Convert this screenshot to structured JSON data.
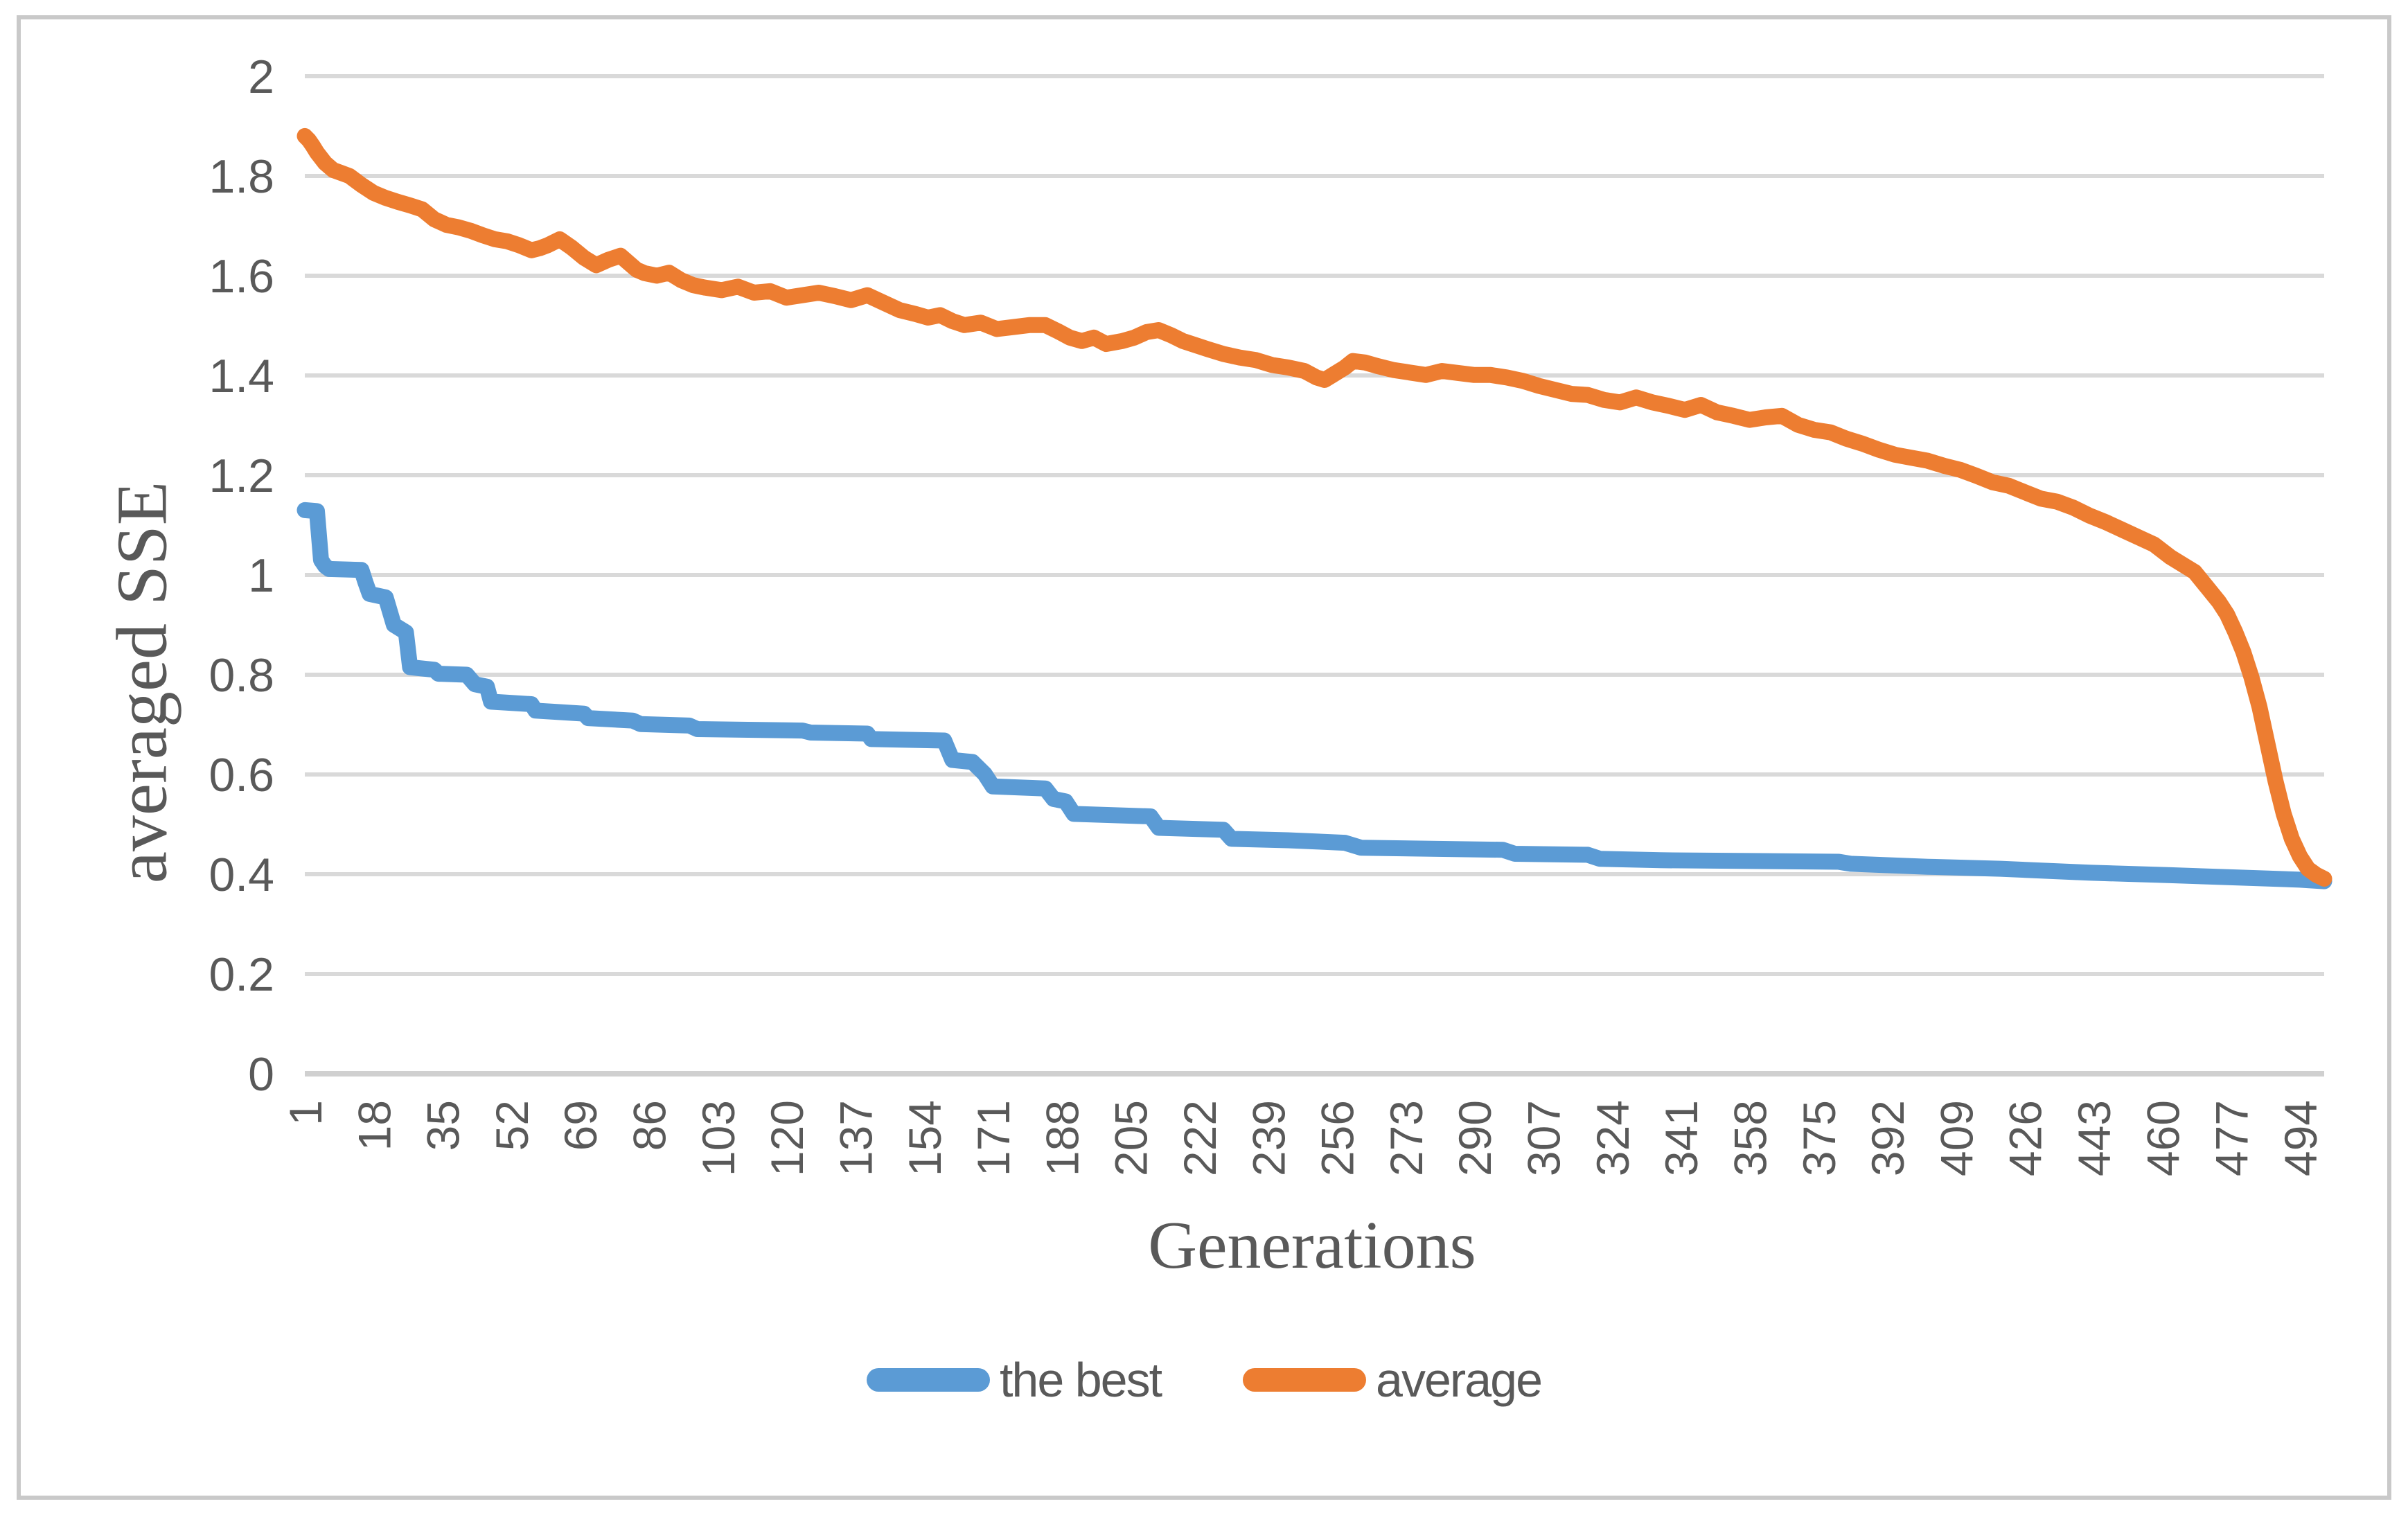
{
  "figure": {
    "background_color": "#FFFFFF",
    "border_color": "#C9C9C9",
    "text_color": "#595959",
    "gridline_color": "#D9D9D9",
    "axisline_color": "#D0D0D0"
  },
  "chart_data": {
    "type": "line",
    "title": "",
    "xlabel": "Generations",
    "ylabel": "averaged SSE",
    "xlim": [
      1,
      500
    ],
    "ylim": [
      0,
      2
    ],
    "grid": "horizontal",
    "legend_position": "bottom",
    "x_tick_step": 17,
    "x_ticks": [
      "1",
      "18",
      "35",
      "52",
      "69",
      "86",
      "103",
      "120",
      "137",
      "154",
      "171",
      "188",
      "205",
      "222",
      "239",
      "256",
      "273",
      "290",
      "307",
      "324",
      "341",
      "358",
      "375",
      "392",
      "409",
      "426",
      "443",
      "460",
      "477",
      "494"
    ],
    "y_ticks": [
      "0",
      "0.2",
      "0.4",
      "0.6",
      "0.8",
      "1",
      "1.2",
      "1.4",
      "1.6",
      "1.8",
      "2"
    ],
    "series": [
      {
        "name": "the best",
        "color": "#5B9BD5",
        "points": [
          [
            1,
            1.13
          ],
          [
            4,
            1.128
          ],
          [
            5,
            1.03
          ],
          [
            6,
            1.018
          ],
          [
            7,
            1.012
          ],
          [
            15,
            1.01
          ],
          [
            16,
            0.985
          ],
          [
            17,
            0.962
          ],
          [
            21,
            0.955
          ],
          [
            23,
            0.9
          ],
          [
            26,
            0.885
          ],
          [
            27,
            0.815
          ],
          [
            33,
            0.81
          ],
          [
            34,
            0.802
          ],
          [
            41,
            0.8
          ],
          [
            43,
            0.781
          ],
          [
            46,
            0.776
          ],
          [
            47,
            0.746
          ],
          [
            57,
            0.741
          ],
          [
            58,
            0.728
          ],
          [
            70,
            0.722
          ],
          [
            71,
            0.713
          ],
          [
            82,
            0.708
          ],
          [
            84,
            0.701
          ],
          [
            96,
            0.698
          ],
          [
            98,
            0.691
          ],
          [
            124,
            0.688
          ],
          [
            126,
            0.684
          ],
          [
            140,
            0.682
          ],
          [
            141,
            0.671
          ],
          [
            159,
            0.668
          ],
          [
            161,
            0.629
          ],
          [
            166,
            0.625
          ],
          [
            169,
            0.601
          ],
          [
            171,
            0.576
          ],
          [
            184,
            0.572
          ],
          [
            186,
            0.551
          ],
          [
            189,
            0.546
          ],
          [
            191,
            0.521
          ],
          [
            210,
            0.516
          ],
          [
            212,
            0.493
          ],
          [
            228,
            0.489
          ],
          [
            230,
            0.471
          ],
          [
            244,
            0.468
          ],
          [
            258,
            0.463
          ],
          [
            262,
            0.453
          ],
          [
            297,
            0.449
          ],
          [
            300,
            0.441
          ],
          [
            318,
            0.439
          ],
          [
            321,
            0.431
          ],
          [
            336,
            0.428
          ],
          [
            380,
            0.425
          ],
          [
            383,
            0.421
          ],
          [
            402,
            0.415
          ],
          [
            420,
            0.411
          ],
          [
            442,
            0.403
          ],
          [
            462,
            0.398
          ],
          [
            480,
            0.393
          ],
          [
            494,
            0.389
          ],
          [
            500,
            0.386
          ]
        ]
      },
      {
        "name": "average",
        "color": "#ED7D31",
        "points": [
          [
            1,
            1.88
          ],
          [
            2,
            1.872
          ],
          [
            3,
            1.86
          ],
          [
            4,
            1.847
          ],
          [
            6,
            1.826
          ],
          [
            8,
            1.812
          ],
          [
            10,
            1.806
          ],
          [
            12,
            1.8
          ],
          [
            15,
            1.782
          ],
          [
            18,
            1.766
          ],
          [
            21,
            1.756
          ],
          [
            24,
            1.748
          ],
          [
            27,
            1.741
          ],
          [
            30,
            1.733
          ],
          [
            33,
            1.713
          ],
          [
            36,
            1.702
          ],
          [
            39,
            1.697
          ],
          [
            42,
            1.69
          ],
          [
            45,
            1.681
          ],
          [
            48,
            1.673
          ],
          [
            51,
            1.669
          ],
          [
            54,
            1.661
          ],
          [
            57,
            1.651
          ],
          [
            59,
            1.655
          ],
          [
            61,
            1.661
          ],
          [
            64,
            1.673
          ],
          [
            67,
            1.656
          ],
          [
            70,
            1.636
          ],
          [
            73,
            1.621
          ],
          [
            76,
            1.632
          ],
          [
            79,
            1.64
          ],
          [
            81,
            1.626
          ],
          [
            83,
            1.612
          ],
          [
            85,
            1.605
          ],
          [
            88,
            1.6
          ],
          [
            91,
            1.606
          ],
          [
            94,
            1.591
          ],
          [
            97,
            1.581
          ],
          [
            100,
            1.576
          ],
          [
            104,
            1.571
          ],
          [
            108,
            1.578
          ],
          [
            112,
            1.566
          ],
          [
            116,
            1.569
          ],
          [
            120,
            1.556
          ],
          [
            124,
            1.561
          ],
          [
            128,
            1.566
          ],
          [
            132,
            1.559
          ],
          [
            136,
            1.551
          ],
          [
            140,
            1.561
          ],
          [
            144,
            1.546
          ],
          [
            148,
            1.531
          ],
          [
            152,
            1.523
          ],
          [
            155,
            1.516
          ],
          [
            158,
            1.521
          ],
          [
            161,
            1.509
          ],
          [
            164,
            1.501
          ],
          [
            168,
            1.506
          ],
          [
            172,
            1.493
          ],
          [
            176,
            1.497
          ],
          [
            180,
            1.501
          ],
          [
            184,
            1.501
          ],
          [
            187,
            1.489
          ],
          [
            190,
            1.476
          ],
          [
            193,
            1.469
          ],
          [
            196,
            1.476
          ],
          [
            199,
            1.463
          ],
          [
            203,
            1.469
          ],
          [
            206,
            1.476
          ],
          [
            209,
            1.487
          ],
          [
            212,
            1.491
          ],
          [
            215,
            1.481
          ],
          [
            218,
            1.469
          ],
          [
            221,
            1.461
          ],
          [
            224,
            1.453
          ],
          [
            228,
            1.443
          ],
          [
            232,
            1.436
          ],
          [
            236,
            1.431
          ],
          [
            240,
            1.421
          ],
          [
            244,
            1.416
          ],
          [
            248,
            1.409
          ],
          [
            251,
            1.396
          ],
          [
            253,
            1.391
          ],
          [
            255,
            1.401
          ],
          [
            258,
            1.416
          ],
          [
            260,
            1.429
          ],
          [
            263,
            1.426
          ],
          [
            266,
            1.419
          ],
          [
            270,
            1.411
          ],
          [
            274,
            1.406
          ],
          [
            278,
            1.401
          ],
          [
            282,
            1.409
          ],
          [
            286,
            1.405
          ],
          [
            290,
            1.401
          ],
          [
            294,
            1.401
          ],
          [
            298,
            1.396
          ],
          [
            302,
            1.389
          ],
          [
            306,
            1.379
          ],
          [
            310,
            1.371
          ],
          [
            314,
            1.363
          ],
          [
            318,
            1.361
          ],
          [
            322,
            1.351
          ],
          [
            326,
            1.346
          ],
          [
            330,
            1.356
          ],
          [
            334,
            1.346
          ],
          [
            338,
            1.339
          ],
          [
            342,
            1.331
          ],
          [
            346,
            1.341
          ],
          [
            350,
            1.326
          ],
          [
            354,
            1.319
          ],
          [
            358,
            1.311
          ],
          [
            362,
            1.316
          ],
          [
            366,
            1.319
          ],
          [
            370,
            1.301
          ],
          [
            374,
            1.291
          ],
          [
            378,
            1.286
          ],
          [
            382,
            1.273
          ],
          [
            386,
            1.263
          ],
          [
            390,
            1.251
          ],
          [
            394,
            1.241
          ],
          [
            398,
            1.235
          ],
          [
            402,
            1.229
          ],
          [
            406,
            1.219
          ],
          [
            410,
            1.211
          ],
          [
            414,
            1.199
          ],
          [
            418,
            1.186
          ],
          [
            422,
            1.179
          ],
          [
            426,
            1.166
          ],
          [
            430,
            1.153
          ],
          [
            434,
            1.147
          ],
          [
            438,
            1.135
          ],
          [
            442,
            1.119
          ],
          [
            446,
            1.106
          ],
          [
            450,
            1.091
          ],
          [
            454,
            1.076
          ],
          [
            458,
            1.061
          ],
          [
            462,
            1.036
          ],
          [
            465,
            1.021
          ],
          [
            468,
            1.006
          ],
          [
            471,
            0.976
          ],
          [
            474,
            0.946
          ],
          [
            476,
            0.921
          ],
          [
            478,
            0.886
          ],
          [
            480,
            0.846
          ],
          [
            482,
            0.796
          ],
          [
            484,
            0.736
          ],
          [
            486,
            0.661
          ],
          [
            488,
            0.586
          ],
          [
            490,
            0.521
          ],
          [
            492,
            0.471
          ],
          [
            494,
            0.436
          ],
          [
            496,
            0.411
          ],
          [
            498,
            0.399
          ],
          [
            500,
            0.391
          ]
        ]
      }
    ]
  },
  "legend": {
    "items": [
      {
        "label": "the best",
        "color": "#5B9BD5"
      },
      {
        "label": "average",
        "color": "#ED7D31"
      }
    ]
  }
}
